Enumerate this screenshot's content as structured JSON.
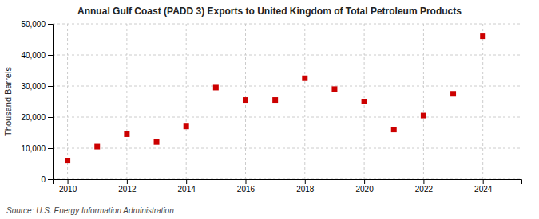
{
  "chart_data": {
    "type": "scatter",
    "title": "Annual Gulf Coast (PADD 3) Exports to United Kingdom of Total Petroleum Products",
    "ylabel": "Thousand Barrels",
    "annotation": "Source: U.S. Energy Information Administration",
    "x": [
      2010,
      2011,
      2012,
      2013,
      2014,
      2015,
      2016,
      2017,
      2018,
      2019,
      2020,
      2021,
      2022,
      2023,
      2024
    ],
    "values": [
      6000,
      10500,
      14500,
      12000,
      17000,
      29500,
      25500,
      25500,
      32500,
      29000,
      25000,
      16000,
      20500,
      27500,
      46000
    ],
    "color": "#cc0000",
    "marker": "square",
    "xlim": [
      2009.5,
      2025.3
    ],
    "xticks": [
      2010,
      2012,
      2014,
      2016,
      2018,
      2020,
      2022,
      2024
    ],
    "ylim": [
      0,
      50000
    ],
    "yticks": [
      0,
      {
        "value": 10000,
        "label": "10,000"
      },
      {
        "value": 20000,
        "label": "20,000"
      },
      {
        "value": 30000,
        "label": "30,000"
      },
      {
        "value": 40000,
        "label": "40,000"
      },
      {
        "value": 50000,
        "label": "50,000"
      }
    ],
    "grid": true
  }
}
